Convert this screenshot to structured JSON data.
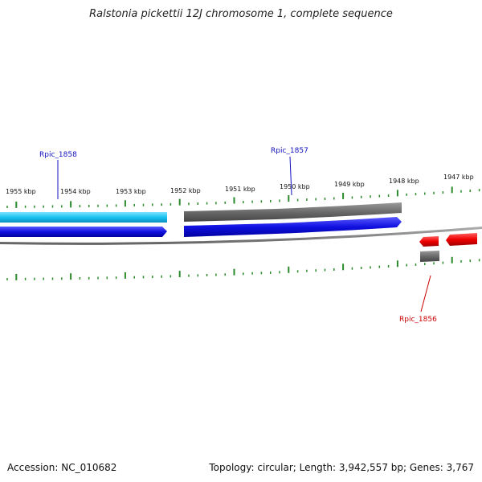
{
  "title": "Ralstonia pickettii 12J chromosome 1, complete sequence",
  "accession_text": "Accession: NC_010682",
  "summary_text": "Topology: circular; Length: 3,942,557 bp; Genes: 3,767",
  "tick_labels": [
    "1955 kbp",
    "1954 kbp",
    "1953 kbp",
    "1952 kbp",
    "1951 kbp",
    "1950 kbp",
    "1949 kbp",
    "1948 kbp",
    "1947 kbp"
  ],
  "gene_labels": {
    "rpic_1858": "Rpic_1858",
    "rpic_1857": "Rpic_1857",
    "rpic_1856": "Rpic_1856"
  },
  "colors": {
    "gene_cyan": "#19c3f0",
    "cds_blue": "#1010e0",
    "gene_gray": "#707070",
    "cds_red": "#ee0000",
    "tick_green": "#2a8a2a",
    "label_blue": "#1010c0",
    "label_red": "#cc0000"
  }
}
